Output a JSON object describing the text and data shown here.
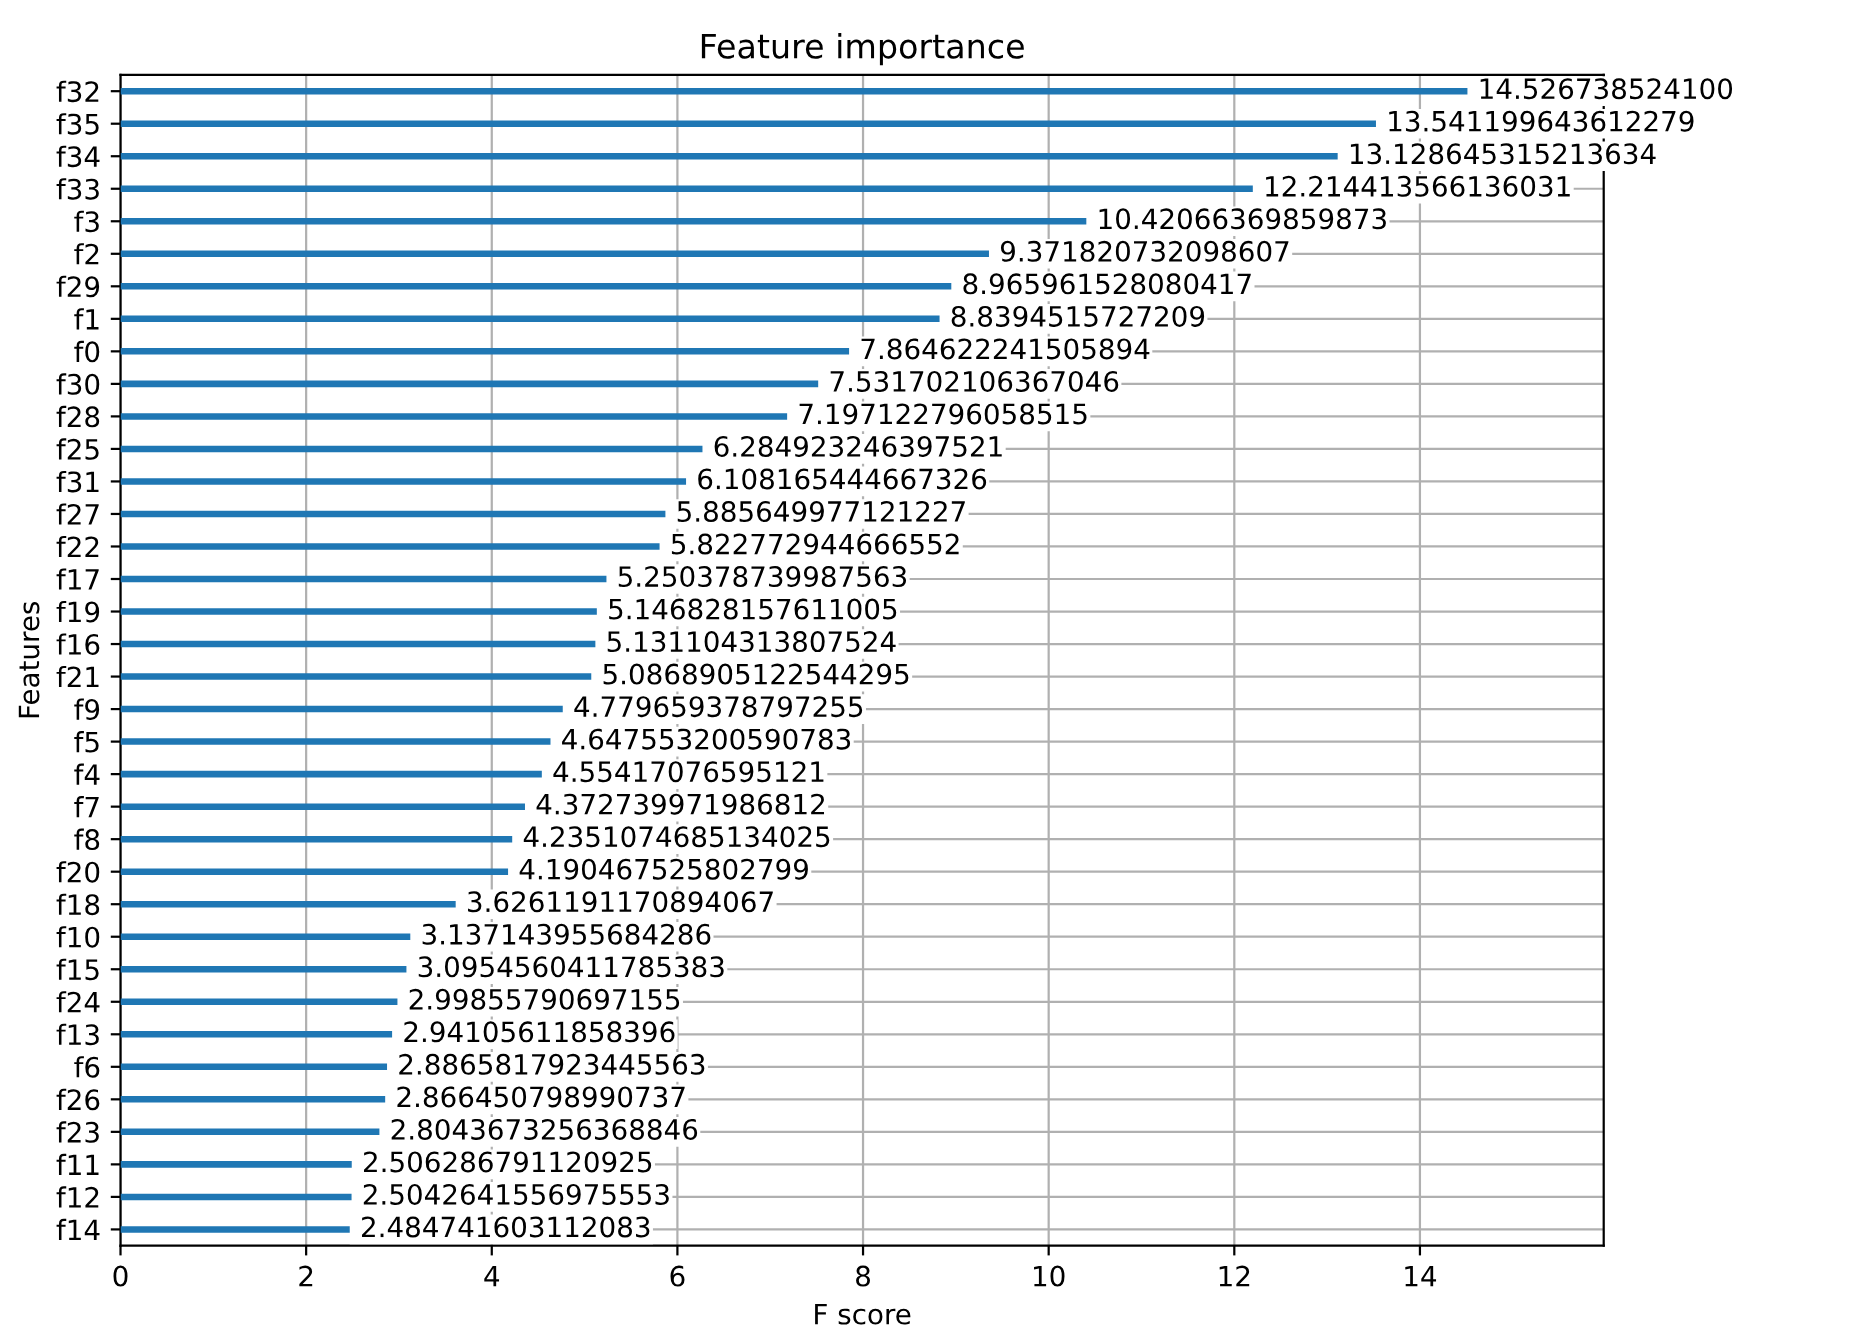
{
  "chart_data": {
    "type": "bar",
    "orientation": "horizontal",
    "title": "Feature importance",
    "xlabel": "F score",
    "ylabel": "Features",
    "categories": [
      "f32",
      "f35",
      "f34",
      "f33",
      "f3",
      "f2",
      "f29",
      "f1",
      "f0",
      "f30",
      "f28",
      "f25",
      "f31",
      "f27",
      "f22",
      "f17",
      "f19",
      "f16",
      "f21",
      "f9",
      "f5",
      "f4",
      "f7",
      "f8",
      "f20",
      "f18",
      "f10",
      "f15",
      "f24",
      "f13",
      "f6",
      "f26",
      "f23",
      "f11",
      "f12",
      "f14"
    ],
    "values": [
      14.5267385241,
      13.541199643612279,
      13.128645315213634,
      12.214413566136031,
      10.42066369859873,
      9.371820732098607,
      8.965961528080417,
      8.8394515727209,
      7.864622241505894,
      7.531702106367046,
      7.197122796058515,
      6.284923246397521,
      6.108165444667326,
      5.885649977121227,
      5.822772944666552,
      5.250378739987563,
      5.146828157611005,
      5.131104313807524,
      5.0868905122544295,
      4.779659378797255,
      4.647553200590783,
      4.55417076595121,
      4.372739971986812,
      4.2351074685134025,
      4.190467525802799,
      3.6261191170894067,
      3.137143955684286,
      3.0954560411785383,
      2.99855790697155,
      2.94105611858396,
      2.8865817923445563,
      2.866450798990737,
      2.8043673256368846,
      2.506286791120925,
      2.5042641556975553,
      2.484741603112083
    ],
    "value_labels": [
      "14.526738524100",
      "13.541199643612279",
      "13.128645315213634",
      "12.214413566136031",
      "10.42066369859873",
      "9.371820732098607",
      "8.965961528080417",
      "8.8394515727209",
      "7.864622241505894",
      "7.531702106367046",
      "7.197122796058515",
      "6.284923246397521",
      "6.108165444667326",
      "5.885649977121227",
      "5.822772944666552",
      "5.250378739987563",
      "5.146828157611005",
      "5.131104313807524",
      "5.0868905122544295",
      "4.779659378797255",
      "4.647553200590783",
      "4.55417076595121",
      "4.372739971986812",
      "4.2351074685134025",
      "4.190467525802799",
      "3.6261191170894067",
      "3.137143955684286",
      "3.0954560411785383",
      "2.99855790697155",
      "2.94105611858396",
      "2.8865817923445563",
      "2.866450798990737",
      "2.8043673256368846",
      "2.506286791120925",
      "2.5042641556975553",
      "2.484741603112083"
    ],
    "color": "#1f77b4",
    "xlim": [
      0,
      15.98
    ],
    "xticks": [
      0,
      2,
      4,
      6,
      8,
      10,
      12,
      14
    ],
    "grid": true
  }
}
